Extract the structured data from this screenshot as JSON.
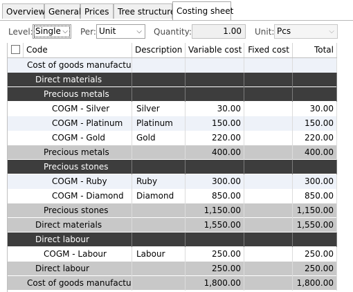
{
  "tabs": [
    {
      "label": "Overview",
      "active": false
    },
    {
      "label": "General",
      "active": false
    },
    {
      "label": "Prices",
      "active": false
    },
    {
      "label": "Tree structure",
      "active": false
    },
    {
      "label": "Costing sheet",
      "active": true
    }
  ],
  "toolbar": {
    "level_label": "Level:",
    "level_value": "Single",
    "per_label": "Per:",
    "per_value": "Unit",
    "quantity_label": "Quantity:",
    "quantity_value": "1.00",
    "unit_label": "Unit:",
    "unit_value": "Pcs"
  },
  "grid": {
    "columns": [
      "Code",
      "Description",
      "Variable cost",
      "Fixed cost",
      "Total"
    ],
    "rows": [
      {
        "code": "Cost of goods manufactu...",
        "description": "",
        "variable": "",
        "fixed": "",
        "total": "",
        "style": "h-top",
        "indent": 0
      },
      {
        "code": "Direct materials",
        "description": "",
        "variable": "",
        "fixed": "",
        "total": "",
        "style": "h-dark",
        "indent": 1
      },
      {
        "code": "Precious metals",
        "description": "",
        "variable": "",
        "fixed": "",
        "total": "",
        "style": "h-dark",
        "indent": 2
      },
      {
        "code": "COGM - Silver",
        "description": "Silver",
        "variable": "30.00",
        "fixed": "",
        "total": "30.00",
        "style": "plain",
        "indent": 3
      },
      {
        "code": "COGM - Platinum",
        "description": "Platinum",
        "variable": "150.00",
        "fixed": "",
        "total": "150.00",
        "style": "alt",
        "indent": 3
      },
      {
        "code": "COGM - Gold",
        "description": "Gold",
        "variable": "220.00",
        "fixed": "",
        "total": "220.00",
        "style": "plain",
        "indent": 3
      },
      {
        "code": "Precious metals",
        "description": "",
        "variable": "400.00",
        "fixed": "",
        "total": "400.00",
        "style": "h-sub",
        "indent": 2
      },
      {
        "code": "Precious stones",
        "description": "",
        "variable": "",
        "fixed": "",
        "total": "",
        "style": "h-dark",
        "indent": 2
      },
      {
        "code": "COGM - Ruby",
        "description": "Ruby",
        "variable": "300.00",
        "fixed": "",
        "total": "300.00",
        "style": "alt",
        "indent": 3
      },
      {
        "code": "COGM - Diamond",
        "description": "Diamond",
        "variable": "850.00",
        "fixed": "",
        "total": "850.00",
        "style": "plain",
        "indent": 3
      },
      {
        "code": "Precious stones",
        "description": "",
        "variable": "1,150.00",
        "fixed": "",
        "total": "1,150.00",
        "style": "h-sub",
        "indent": 2
      },
      {
        "code": "Direct materials",
        "description": "",
        "variable": "1,550.00",
        "fixed": "",
        "total": "1,550.00",
        "style": "h-sub",
        "indent": 1
      },
      {
        "code": "Direct labour",
        "description": "",
        "variable": "",
        "fixed": "",
        "total": "",
        "style": "h-dark",
        "indent": 1
      },
      {
        "code": "COGM - Labour",
        "description": "Labour",
        "variable": "250.00",
        "fixed": "",
        "total": "250.00",
        "style": "plain",
        "indent": 2
      },
      {
        "code": "Direct labour",
        "description": "",
        "variable": "250.00",
        "fixed": "",
        "total": "250.00",
        "style": "h-sub",
        "indent": 1
      },
      {
        "code": "Cost of goods manufactu...",
        "description": "",
        "variable": "1,800.00",
        "fixed": "",
        "total": "1,800.00",
        "style": "h-sub",
        "indent": 0
      }
    ]
  },
  "icons": {
    "dropdown": "chevron-down-icon",
    "select_all": "checkbox-icon"
  },
  "colors": {
    "group_header": "#3d3d3d",
    "subtotal": "#c8c8c8",
    "alt_row": "#eef2f9"
  }
}
